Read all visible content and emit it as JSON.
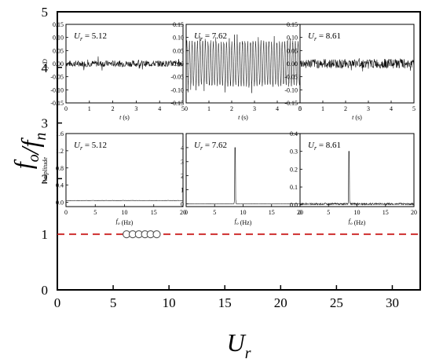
{
  "chart_data": {
    "main": {
      "type": "scatter",
      "xlabel": "U_r",
      "ylabel": "f_o/f_n",
      "xlim": [
        0,
        32.5
      ],
      "ylim": [
        0,
        5
      ],
      "xticks": [
        "0",
        "5",
        "10",
        "15",
        "20",
        "25",
        "30"
      ],
      "yticks": [
        "0",
        "1",
        "2",
        "3",
        "4",
        "5"
      ],
      "series": [
        {
          "marker": "open-circle",
          "x": [
            6.2,
            6.75,
            7.3,
            7.85,
            8.35,
            8.9
          ],
          "y": [
            1,
            1,
            1,
            1,
            1,
            1
          ]
        }
      ],
      "reference_line": {
        "y": 1,
        "style": "dashed",
        "color": "#cc2222"
      }
    },
    "insets": [
      {
        "type": "line",
        "annotation_var": "U",
        "annotation_sub": "r",
        "annotation_value": " = 5.12",
        "ylabel": "y/D",
        "xlabel": "t (s)",
        "xlim": [
          0,
          5
        ],
        "ylim": [
          -0.15,
          0.15
        ],
        "xticks": [
          "0",
          "1",
          "2",
          "3",
          "4",
          "5"
        ],
        "yticks": [
          "-0.15",
          "-0.10",
          "-0.05",
          "0.00",
          "0.05",
          "0.10",
          "0.15"
        ],
        "signal": {
          "kind": "noise",
          "amplitude": 0.012,
          "spike": 0.03
        }
      },
      {
        "type": "line",
        "annotation_var": "U",
        "annotation_sub": "r",
        "annotation_value": " = 7.62",
        "xlabel": "t (s)",
        "xlim": [
          0,
          5
        ],
        "ylim": [
          -0.15,
          0.15
        ],
        "xticks": [
          "0",
          "1",
          "2",
          "3",
          "4",
          "5"
        ],
        "yticks": [
          "-0.15",
          "-0.10",
          "-0.05",
          "0.00",
          "0.05",
          "0.10",
          "0.15"
        ],
        "signal": {
          "kind": "oscillation",
          "amplitude": 0.09,
          "frequency_hz": 8.6
        }
      },
      {
        "type": "line",
        "annotation_var": "U",
        "annotation_sub": "r",
        "annotation_value": " = 8.61",
        "xlabel": "t (s)",
        "xlim": [
          0,
          5
        ],
        "ylim": [
          -0.15,
          0.15
        ],
        "xticks": [
          "0",
          "1",
          "2",
          "3",
          "4",
          "5"
        ],
        "yticks": [
          "-0.15",
          "-0.10",
          "-0.05",
          "0.00",
          "0.05",
          "0.10",
          "0.15"
        ],
        "signal": {
          "kind": "noise",
          "amplitude": 0.018,
          "spike": 0.03
        }
      },
      {
        "type": "line",
        "annotation_var": "U",
        "annotation_sub": "r",
        "annotation_value": " = 5.12",
        "ylabel": "Amplitude",
        "xlabel": "f_o (Hz)",
        "xlim": [
          0,
          20
        ],
        "ylim": [
          -0.1,
          1.6
        ],
        "xticks": [
          "0",
          "5",
          "10",
          "15",
          "20"
        ],
        "yticks": [
          "0.0",
          "0.4",
          "0.8",
          "1.2",
          "1.6"
        ],
        "ytick_values": [
          0,
          0.4,
          0.8,
          1.2,
          1.6
        ],
        "signal": {
          "kind": "flat",
          "level": 0.04
        }
      },
      {
        "type": "line",
        "annotation_var": "U",
        "annotation_sub": "r",
        "annotation_value": " = 7.62",
        "xlabel": "f_o (Hz)",
        "xlim": [
          0,
          20
        ],
        "ylim": [
          -0.2,
          5
        ],
        "xticks": [
          "0",
          "5",
          "10",
          "15",
          "20"
        ],
        "yticks": [
          "0",
          "1",
          "2",
          "3",
          "4"
        ],
        "ytick_values": [
          0,
          1,
          2,
          3,
          4
        ],
        "signal": {
          "kind": "peak",
          "peak_x": 8.6,
          "peak_y": 4.0
        }
      },
      {
        "type": "line",
        "annotation_var": "U",
        "annotation_sub": "r",
        "annotation_value": " = 8.61",
        "xlabel": "f_o (Hz)",
        "xlim": [
          0,
          20
        ],
        "ylim": [
          -0.01,
          0.4
        ],
        "xticks": [
          "0",
          "5",
          "10",
          "15",
          "20"
        ],
        "yticks": [
          "0.0",
          "0.1",
          "0.2",
          "0.3",
          "0.4"
        ],
        "ytick_values": [
          0,
          0.1,
          0.2,
          0.3,
          0.4
        ],
        "signal": {
          "kind": "peak",
          "peak_x": 8.6,
          "peak_y": 0.3,
          "noise": 0.01
        }
      }
    ]
  }
}
